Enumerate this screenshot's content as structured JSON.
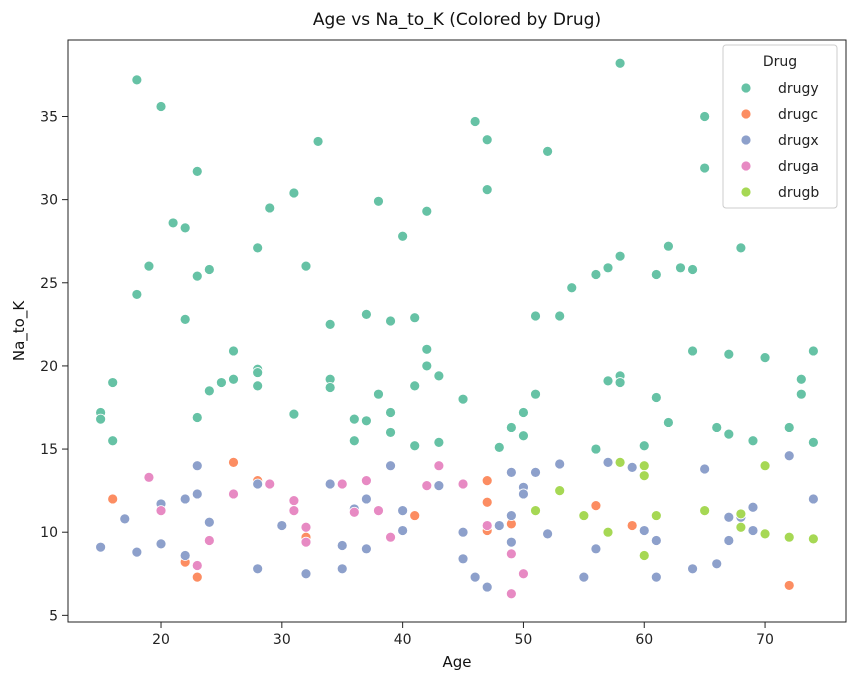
{
  "chart_data": {
    "type": "scatter",
    "title": "Age vs Na_to_K (Colored by Drug)",
    "xlabel": "Age",
    "ylabel": "Na_to_K",
    "xlim": [
      12.3,
      76.7
    ],
    "ylim": [
      4.6,
      39.6
    ],
    "xticks": [
      20,
      30,
      40,
      50,
      60,
      70
    ],
    "yticks": [
      5,
      10,
      15,
      20,
      25,
      30,
      35
    ],
    "grid": false,
    "legend": {
      "title": "Drug",
      "placement": "top-right"
    },
    "series": [
      {
        "name": "drugy",
        "color": "#66c2a5",
        "points": [
          [
            15,
            17.2
          ],
          [
            15,
            16.8
          ],
          [
            16,
            19.0
          ],
          [
            16,
            15.5
          ],
          [
            18,
            37.2
          ],
          [
            18,
            24.3
          ],
          [
            19,
            26.0
          ],
          [
            20,
            35.6
          ],
          [
            21,
            28.6
          ],
          [
            22,
            28.3
          ],
          [
            22,
            22.8
          ],
          [
            23,
            31.7
          ],
          [
            23,
            25.4
          ],
          [
            23,
            16.9
          ],
          [
            24,
            25.8
          ],
          [
            24,
            18.5
          ],
          [
            25,
            19.0
          ],
          [
            26,
            20.9
          ],
          [
            26,
            19.2
          ],
          [
            28,
            27.1
          ],
          [
            28,
            19.8
          ],
          [
            28,
            19.6
          ],
          [
            28,
            18.8
          ],
          [
            29,
            29.5
          ],
          [
            31,
            30.4
          ],
          [
            31,
            17.1
          ],
          [
            32,
            26.0
          ],
          [
            33,
            33.5
          ],
          [
            34,
            22.5
          ],
          [
            34,
            19.2
          ],
          [
            34,
            18.7
          ],
          [
            36,
            16.8
          ],
          [
            36,
            15.5
          ],
          [
            37,
            23.1
          ],
          [
            37,
            16.7
          ],
          [
            38,
            29.9
          ],
          [
            38,
            18.3
          ],
          [
            39,
            22.7
          ],
          [
            39,
            17.2
          ],
          [
            39,
            16.0
          ],
          [
            40,
            27.8
          ],
          [
            41,
            22.9
          ],
          [
            41,
            18.8
          ],
          [
            41,
            15.2
          ],
          [
            42,
            29.3
          ],
          [
            42,
            21.0
          ],
          [
            42,
            20.0
          ],
          [
            43,
            19.4
          ],
          [
            43,
            15.4
          ],
          [
            45,
            18.0
          ],
          [
            46,
            34.7
          ],
          [
            47,
            33.6
          ],
          [
            47,
            30.6
          ],
          [
            48,
            15.1
          ],
          [
            49,
            16.3
          ],
          [
            50,
            17.2
          ],
          [
            50,
            15.8
          ],
          [
            51,
            23.0
          ],
          [
            51,
            18.3
          ],
          [
            52,
            32.9
          ],
          [
            53,
            23.0
          ],
          [
            54,
            24.7
          ],
          [
            56,
            25.5
          ],
          [
            56,
            15.0
          ],
          [
            57,
            25.9
          ],
          [
            57,
            19.1
          ],
          [
            58,
            38.2
          ],
          [
            58,
            26.6
          ],
          [
            58,
            19.4
          ],
          [
            58,
            19.0
          ],
          [
            60,
            15.2
          ],
          [
            61,
            25.5
          ],
          [
            61,
            18.1
          ],
          [
            62,
            27.2
          ],
          [
            62,
            16.6
          ],
          [
            63,
            25.9
          ],
          [
            64,
            25.8
          ],
          [
            64,
            20.9
          ],
          [
            65,
            35.0
          ],
          [
            65,
            31.9
          ],
          [
            66,
            16.3
          ],
          [
            67,
            20.7
          ],
          [
            67,
            15.9
          ],
          [
            68,
            27.1
          ],
          [
            69,
            15.5
          ],
          [
            70,
            20.5
          ],
          [
            72,
            16.3
          ],
          [
            73,
            19.2
          ],
          [
            73,
            18.3
          ],
          [
            74,
            20.9
          ],
          [
            74,
            15.4
          ]
        ]
      },
      {
        "name": "drugc",
        "color": "#fc8d62",
        "points": [
          [
            16,
            12.0
          ],
          [
            22,
            8.2
          ],
          [
            23,
            7.3
          ],
          [
            26,
            14.2
          ],
          [
            28,
            13.1
          ],
          [
            32,
            9.7
          ],
          [
            41,
            11.0
          ],
          [
            47,
            13.1
          ],
          [
            47,
            11.8
          ],
          [
            47,
            10.1
          ],
          [
            49,
            10.5
          ],
          [
            56,
            11.6
          ],
          [
            59,
            10.4
          ],
          [
            72,
            6.8
          ]
        ]
      },
      {
        "name": "drugx",
        "color": "#8da0cb",
        "points": [
          [
            15,
            9.1
          ],
          [
            17,
            10.8
          ],
          [
            18,
            8.8
          ],
          [
            20,
            11.7
          ],
          [
            20,
            9.3
          ],
          [
            22,
            12.0
          ],
          [
            22,
            8.6
          ],
          [
            23,
            14.0
          ],
          [
            23,
            12.3
          ],
          [
            23,
            8.0
          ],
          [
            24,
            10.6
          ],
          [
            28,
            12.9
          ],
          [
            28,
            7.8
          ],
          [
            30,
            10.4
          ],
          [
            32,
            7.5
          ],
          [
            34,
            12.9
          ],
          [
            35,
            9.2
          ],
          [
            35,
            7.8
          ],
          [
            36,
            11.4
          ],
          [
            37,
            12.0
          ],
          [
            37,
            9.0
          ],
          [
            39,
            14.0
          ],
          [
            40,
            11.3
          ],
          [
            40,
            10.1
          ],
          [
            43,
            12.8
          ],
          [
            45,
            10.0
          ],
          [
            45,
            8.4
          ],
          [
            46,
            7.3
          ],
          [
            47,
            6.7
          ],
          [
            48,
            10.4
          ],
          [
            49,
            13.6
          ],
          [
            49,
            11.0
          ],
          [
            49,
            9.4
          ],
          [
            50,
            12.7
          ],
          [
            50,
            12.3
          ],
          [
            51,
            13.6
          ],
          [
            52,
            9.9
          ],
          [
            53,
            14.1
          ],
          [
            55,
            7.3
          ],
          [
            56,
            9.0
          ],
          [
            57,
            14.2
          ],
          [
            59,
            13.9
          ],
          [
            60,
            10.1
          ],
          [
            61,
            9.5
          ],
          [
            61,
            7.3
          ],
          [
            64,
            7.8
          ],
          [
            65,
            13.8
          ],
          [
            66,
            8.1
          ],
          [
            67,
            10.9
          ],
          [
            67,
            9.5
          ],
          [
            68,
            10.9
          ],
          [
            69,
            11.5
          ],
          [
            69,
            10.1
          ],
          [
            72,
            14.6
          ],
          [
            74,
            12.0
          ]
        ]
      },
      {
        "name": "druga",
        "color": "#e78ac3",
        "points": [
          [
            19,
            13.3
          ],
          [
            20,
            11.3
          ],
          [
            23,
            8.0
          ],
          [
            24,
            9.5
          ],
          [
            26,
            12.3
          ],
          [
            29,
            12.9
          ],
          [
            31,
            11.9
          ],
          [
            31,
            11.3
          ],
          [
            32,
            10.3
          ],
          [
            32,
            9.4
          ],
          [
            35,
            12.9
          ],
          [
            36,
            11.2
          ],
          [
            37,
            13.1
          ],
          [
            38,
            11.3
          ],
          [
            39,
            9.7
          ],
          [
            42,
            12.8
          ],
          [
            43,
            14.0
          ],
          [
            45,
            12.9
          ],
          [
            47,
            10.4
          ],
          [
            49,
            8.7
          ],
          [
            49,
            6.3
          ],
          [
            50,
            7.5
          ]
        ]
      },
      {
        "name": "drugb",
        "color": "#a6d854",
        "points": [
          [
            51,
            11.3
          ],
          [
            53,
            12.5
          ],
          [
            55,
            11.0
          ],
          [
            57,
            10.0
          ],
          [
            58,
            14.2
          ],
          [
            60,
            14.0
          ],
          [
            60,
            13.4
          ],
          [
            60,
            8.6
          ],
          [
            61,
            11.0
          ],
          [
            65,
            11.3
          ],
          [
            68,
            11.1
          ],
          [
            68,
            10.3
          ],
          [
            70,
            14.0
          ],
          [
            70,
            9.9
          ],
          [
            72,
            9.7
          ],
          [
            74,
            9.6
          ]
        ]
      }
    ]
  }
}
